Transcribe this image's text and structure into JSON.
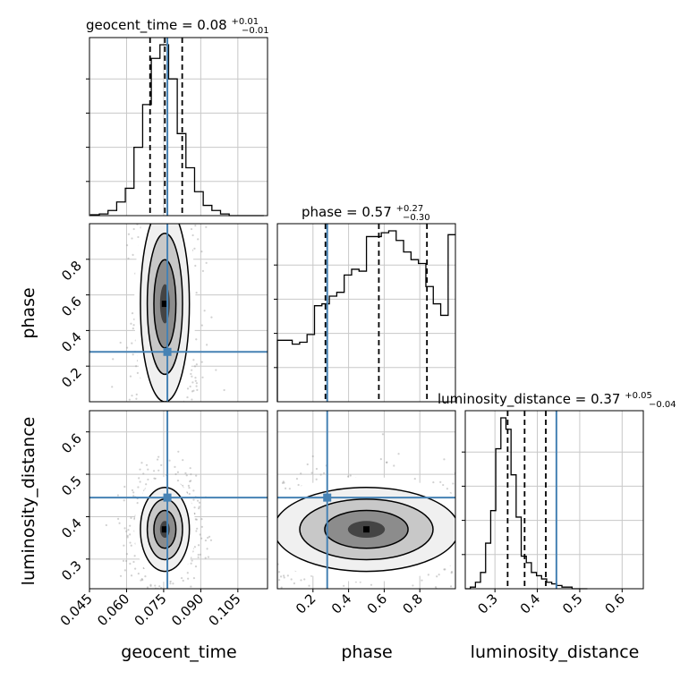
{
  "chart_data": {
    "type": "corner",
    "truth_color": "#4682b4",
    "parameters": [
      {
        "name": "geocent_time",
        "median": "0.08",
        "plus": "+0.01",
        "minus": "−0.01",
        "range": [
          0.045,
          0.117
        ],
        "ticks": [
          "0.045",
          "0.060",
          "0.075",
          "0.090",
          "0.105"
        ],
        "tick_values": [
          0.045,
          0.06,
          0.075,
          0.09,
          0.105
        ],
        "quantiles": [
          0.0695,
          0.0755,
          0.0825
        ],
        "truth": 0.0765
      },
      {
        "name": "phase",
        "median": "0.57",
        "plus": "+0.27",
        "minus": "−0.30",
        "range": [
          0.0,
          1.0
        ],
        "ticks": [
          "0.2",
          "0.4",
          "0.6",
          "0.8"
        ],
        "tick_values": [
          0.2,
          0.4,
          0.6,
          0.8
        ],
        "quantiles": [
          0.27,
          0.57,
          0.84
        ],
        "truth": 0.28
      },
      {
        "name": "luminosity_distance",
        "median": "0.37",
        "plus": "+0.05",
        "minus": "−0.04",
        "range": [
          0.23,
          0.65
        ],
        "ticks": [
          "0.3",
          "0.4",
          "0.5",
          "0.6"
        ],
        "tick_values": [
          0.3,
          0.4,
          0.5,
          0.6
        ],
        "quantiles": [
          0.33,
          0.37,
          0.42
        ],
        "truth": 0.445
      }
    ],
    "histograms": [
      {
        "param": "geocent_time",
        "bin_start": 0.0455,
        "bin_width": 0.0035,
        "counts": [
          0.5,
          1,
          3,
          8,
          16,
          40,
          65,
          92,
          100,
          80,
          48,
          28,
          14,
          6,
          3,
          1,
          0,
          0,
          0,
          0
        ]
      },
      {
        "param": "phase",
        "bin_start": 0.0,
        "bin_width": 0.0417,
        "counts": [
          32,
          32,
          30,
          31,
          35,
          50,
          51,
          55,
          57,
          66,
          69,
          68,
          86,
          86,
          88,
          89,
          84,
          78,
          74,
          72,
          60,
          51,
          45,
          87
        ]
      },
      {
        "param": "luminosity_distance",
        "bin_start": 0.23,
        "bin_width": 0.012,
        "counts": [
          0,
          1,
          4,
          10,
          28,
          48,
          86,
          105,
          98,
          70,
          44,
          20,
          16,
          10,
          8,
          6,
          4,
          3,
          2,
          1,
          1,
          0,
          0,
          0
        ]
      }
    ]
  }
}
